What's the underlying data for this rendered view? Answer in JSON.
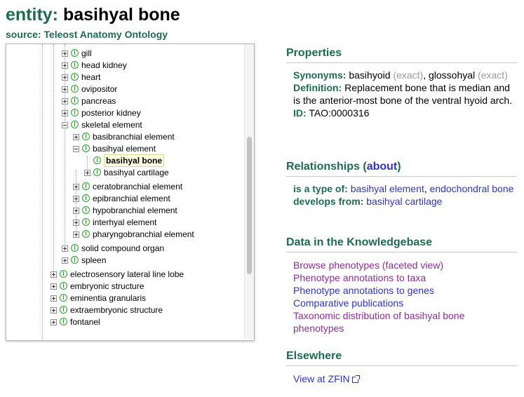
{
  "header": {
    "entity_label": "entity:",
    "entity_name": "basihyal bone",
    "source": "source: Teleost Anatomy Ontology"
  },
  "tree": {
    "nodes": [
      {
        "label": "gill",
        "expander": "plus"
      },
      {
        "label": "head kidney",
        "expander": "plus"
      },
      {
        "label": "heart",
        "expander": "plus"
      },
      {
        "label": "ovipositor",
        "expander": "plus"
      },
      {
        "label": "pancreas",
        "expander": "plus"
      },
      {
        "label": "posterior kidney",
        "expander": "plus"
      },
      {
        "label": "skeletal element",
        "expander": "minus"
      },
      {
        "label": "basibranchial element",
        "expander": "plus"
      },
      {
        "label": "basihyal element",
        "expander": "minus"
      },
      {
        "label": "basihyal bone",
        "expander": "none",
        "selected": true
      },
      {
        "label": "basihyal cartilage",
        "expander": "plus"
      },
      {
        "label": "ceratobranchial element",
        "expander": "plus"
      },
      {
        "label": "epibranchial element",
        "expander": "plus"
      },
      {
        "label": "hypobranchial element",
        "expander": "plus"
      },
      {
        "label": "interhyal element",
        "expander": "plus"
      },
      {
        "label": "pharyngobranchial element",
        "expander": "plus"
      },
      {
        "label": "solid compound organ",
        "expander": "plus"
      },
      {
        "label": "spleen",
        "expander": "plus"
      },
      {
        "label": "electrosensory lateral line lobe",
        "expander": "plus"
      },
      {
        "label": "embryonic structure",
        "expander": "plus"
      },
      {
        "label": "eminentia granularis",
        "expander": "plus"
      },
      {
        "label": "extraembryonic structure",
        "expander": "plus"
      },
      {
        "label": "fontanel",
        "expander": "plus"
      }
    ]
  },
  "properties": {
    "title": "Properties",
    "synonyms_key": "Synonyms:",
    "synonym1": "basihyoid",
    "synonym1_type": "(exact)",
    "synonym2": "glossohyal",
    "synonym2_type": "(exact)",
    "definition_key": "Definition:",
    "definition": "Replacement bone that is median and is the anterior-most bone of the ventral hyoid arch.",
    "id_key": "ID:",
    "id": "TAO:0000316"
  },
  "relationships": {
    "title": "Relationships",
    "about_open": "(",
    "about_link": "about",
    "about_close": ")",
    "is_a_key": "is a type of:",
    "is_a_1": "basihyal element",
    "is_a_2": "endochondral bone",
    "develops_key": "develops from:",
    "develops_1": "basihyal cartilage"
  },
  "knowledgebase": {
    "title": "Data in the Knowledgebase",
    "links": [
      {
        "label": "Browse phenotypes (faceted view)",
        "visited": true
      },
      {
        "label": "Phenotype annotations to taxa",
        "visited": true
      },
      {
        "label": "Phenotype annotations to genes",
        "visited": false
      },
      {
        "label": "Comparative publications",
        "visited": false
      },
      {
        "label": "Taxonomic distribution of basihyal bone phenotypes",
        "visited": true
      }
    ]
  },
  "elsewhere": {
    "title": "Elsewhere",
    "zfin_link": "View at ZFIN",
    "zfin_icon": "external-link-icon"
  },
  "colors": {
    "heading_green": "#1e6b4e",
    "link_blue": "#2e35b8",
    "visited_purple": "#8a2f93",
    "synonym_grey": "#9a9a9a"
  }
}
